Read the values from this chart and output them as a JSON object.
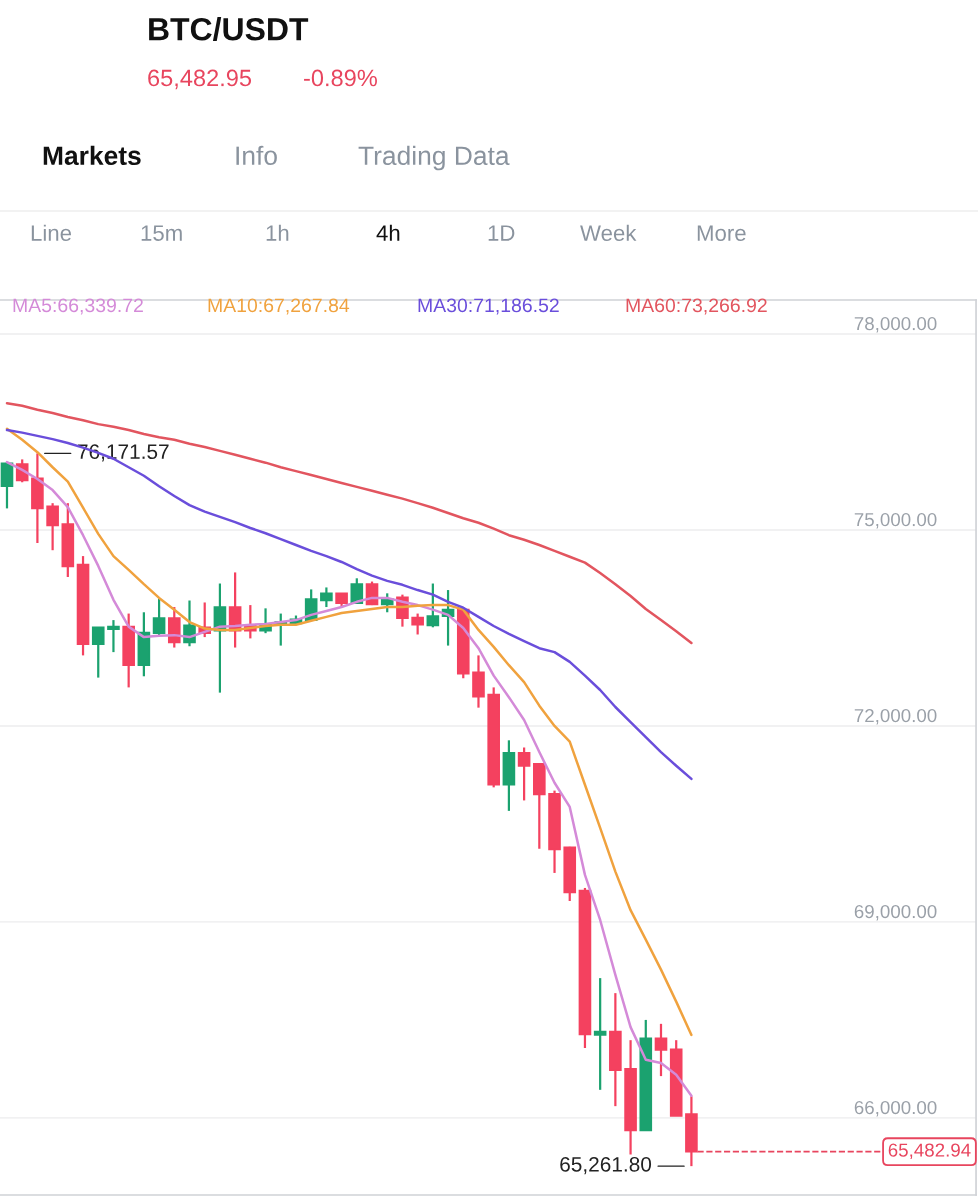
{
  "chart_data": {
    "type": "candlestick",
    "title": "BTC/USDT",
    "subtitle": "65,482.95",
    "categories": [
      null,
      null,
      null,
      null,
      null,
      null,
      null,
      null,
      null,
      null,
      null,
      null,
      null,
      null,
      null,
      null,
      null,
      null,
      null,
      null,
      null,
      null,
      null,
      null,
      null,
      null,
      null,
      null,
      null,
      null,
      null,
      null,
      null,
      null,
      null,
      null,
      null,
      null,
      null,
      null,
      null,
      null,
      null,
      null,
      null,
      null
    ],
    "ohlc": [
      [
        75670,
        76040,
        75330,
        76020
      ],
      [
        76010,
        76080,
        75730,
        75760
      ],
      [
        75790,
        76171.57,
        74800,
        75330
      ],
      [
        75360,
        75410,
        74690,
        75070
      ],
      [
        75090,
        75410,
        74280,
        74440
      ],
      [
        74470,
        74600,
        73080,
        73250
      ],
      [
        73250,
        73510,
        72740,
        73510
      ],
      [
        73480,
        73620,
        73130,
        73520
      ],
      [
        73520,
        73720,
        72590,
        72930
      ],
      [
        72930,
        73740,
        72760,
        73430
      ],
      [
        73420,
        73950,
        73380,
        73650
      ],
      [
        73650,
        73820,
        73200,
        73280
      ],
      [
        73280,
        73920,
        73220,
        73540
      ],
      [
        73510,
        73890,
        73360,
        73420
      ],
      [
        73460,
        74180,
        72510,
        73820
      ],
      [
        73820,
        74350,
        73200,
        73460
      ],
      [
        73540,
        73850,
        73340,
        73460
      ],
      [
        73460,
        73800,
        73420,
        73550
      ],
      [
        73550,
        73720,
        73230,
        73590
      ],
      [
        73570,
        73690,
        73570,
        73630
      ],
      [
        73620,
        74090,
        73620,
        73940
      ],
      [
        73920,
        74120,
        73820,
        74030
      ],
      [
        74030,
        74030,
        73820,
        73880
      ],
      [
        73880,
        74260,
        73880,
        74170
      ],
      [
        74170,
        74210,
        73850,
        73860
      ],
      [
        73860,
        74030,
        73740,
        73940
      ],
      [
        73970,
        74010,
        73520,
        73650
      ],
      [
        73660,
        73720,
        73400,
        73550
      ],
      [
        73540,
        74180,
        73510,
        73680
      ],
      [
        73680,
        74080,
        73230,
        73780
      ],
      [
        73780,
        73820,
        72730,
        72800
      ],
      [
        72820,
        73080,
        72280,
        72450
      ],
      [
        72480,
        72590,
        71060,
        71100
      ],
      [
        71100,
        71780,
        70700,
        71590
      ],
      [
        71590,
        71670,
        70860,
        71390
      ],
      [
        71420,
        71420,
        70120,
        70950
      ],
      [
        70960,
        71010,
        69750,
        70110
      ],
      [
        70140,
        70150,
        69320,
        69450
      ],
      [
        69480,
        69520,
        67070,
        67280
      ],
      [
        67270,
        68140,
        66430,
        67320
      ],
      [
        67320,
        67910,
        66180,
        66730
      ],
      [
        66750,
        67190,
        65440,
        65810
      ],
      [
        65810,
        67500,
        65810,
        67220
      ],
      [
        67220,
        67440,
        66640,
        67040
      ],
      [
        67050,
        67190,
        66030,
        66030
      ],
      [
        66060,
        66330,
        65261.8,
        65482.94
      ]
    ],
    "colors": [
      "#1ba26f",
      "#f4415f",
      "#f4415f",
      "#f4415f",
      "#f4415f",
      "#f4415f",
      "#1ba26f",
      "#1ba26f",
      "#f4415f",
      "#1ba26f",
      "#1ba26f",
      "#f4415f",
      "#1ba26f",
      "#f4415f",
      "#1ba26f",
      "#f4415f",
      "#f4415f",
      "#1ba26f",
      "#1ba26f",
      "#1ba26f",
      "#1ba26f",
      "#1ba26f",
      "#f4415f",
      "#1ba26f",
      "#f4415f",
      "#1ba26f",
      "#f4415f",
      "#f4415f",
      "#1ba26f",
      "#1ba26f",
      "#f4415f",
      "#f4415f",
      "#f4415f",
      "#1ba26f",
      "#f4415f",
      "#f4415f",
      "#f4415f",
      "#f4415f",
      "#f4415f",
      "#1ba26f",
      "#f4415f",
      "#f4415f",
      "#1ba26f",
      "#f4415f",
      "#f4415f",
      "#f4415f"
    ],
    "series": [
      {
        "name": "MA5:66,339.72",
        "type": "line",
        "color": "#d48ad8",
        "values": [
          76040,
          75920,
          75780,
          75610,
          75350,
          74920,
          74450,
          73930,
          73520,
          73360,
          73380,
          73390,
          73360,
          73440,
          73520,
          73530,
          73550,
          73560,
          73590,
          73620,
          73700,
          73760,
          73820,
          73900,
          73960,
          73960,
          73900,
          73850,
          73780,
          73700,
          73500,
          73190,
          72770,
          72440,
          72090,
          71600,
          71130,
          70760,
          69720,
          69030,
          68190,
          67390,
          66890,
          66840,
          66660,
          66340
        ]
      },
      {
        "name": "MA10:67,267.84",
        "type": "line",
        "color": "#f0a23e",
        "values": [
          76550,
          76380,
          76190,
          75960,
          75740,
          75340,
          74940,
          74600,
          74390,
          74170,
          73960,
          73780,
          73590,
          73490,
          73470,
          73470,
          73500,
          73530,
          73550,
          73550,
          73610,
          73670,
          73730,
          73760,
          73790,
          73820,
          73820,
          73840,
          73850,
          73850,
          73780,
          73470,
          73210,
          72930,
          72670,
          72310,
          72000,
          71760,
          71100,
          70440,
          69770,
          69180,
          68730,
          68270,
          67780,
          67270
        ]
      },
      {
        "name": "MA30:71,186.52",
        "type": "line",
        "color": "#6a4edb",
        "values": [
          76530,
          76490,
          76440,
          76390,
          76330,
          76260,
          76180,
          76090,
          75960,
          75830,
          75670,
          75520,
          75380,
          75280,
          75200,
          75120,
          75030,
          74950,
          74860,
          74770,
          74680,
          74600,
          74510,
          74400,
          74300,
          74220,
          74160,
          74080,
          74010,
          73900,
          73810,
          73670,
          73530,
          73410,
          73300,
          73190,
          73130,
          72980,
          72770,
          72550,
          72290,
          72060,
          71830,
          71600,
          71390,
          71190
        ]
      },
      {
        "name": "MA60:73,266.92",
        "type": "line",
        "color": "#e2555f",
        "values": [
          76940,
          76900,
          76840,
          76790,
          76730,
          76680,
          76620,
          76580,
          76530,
          76470,
          76420,
          76380,
          76320,
          76270,
          76210,
          76150,
          76090,
          76030,
          75960,
          75900,
          75840,
          75780,
          75720,
          75660,
          75600,
          75540,
          75480,
          75410,
          75340,
          75260,
          75180,
          75110,
          75020,
          74920,
          74850,
          74770,
          74680,
          74590,
          74500,
          74340,
          74170,
          73990,
          73790,
          73620,
          73450,
          73270
        ]
      }
    ],
    "ylim": [
      64820,
      78520
    ],
    "yticks": [
      {
        "value": 66000,
        "label": "66,000.00"
      },
      {
        "value": 69000,
        "label": "69,000.00"
      },
      {
        "value": 72000,
        "label": "72,000.00"
      },
      {
        "value": 75000,
        "label": "75,000.00"
      },
      {
        "value": 78000,
        "label": "78,000.00"
      }
    ],
    "tick_labels": "y",
    "grid": "y",
    "legend": "top",
    "ref_lines": [
      {
        "axis": "y",
        "value": 65482.94,
        "label": "65,482.94",
        "color": "#e8455e",
        "line_style": "dashed"
      }
    ],
    "annotations": [
      "-0.89%",
      "Markets",
      "Info",
      "Trading Data",
      "Line",
      "15m",
      "1h",
      "4h",
      "1D",
      "Week",
      "More",
      "76,171.57",
      "65,261.80"
    ]
  }
}
